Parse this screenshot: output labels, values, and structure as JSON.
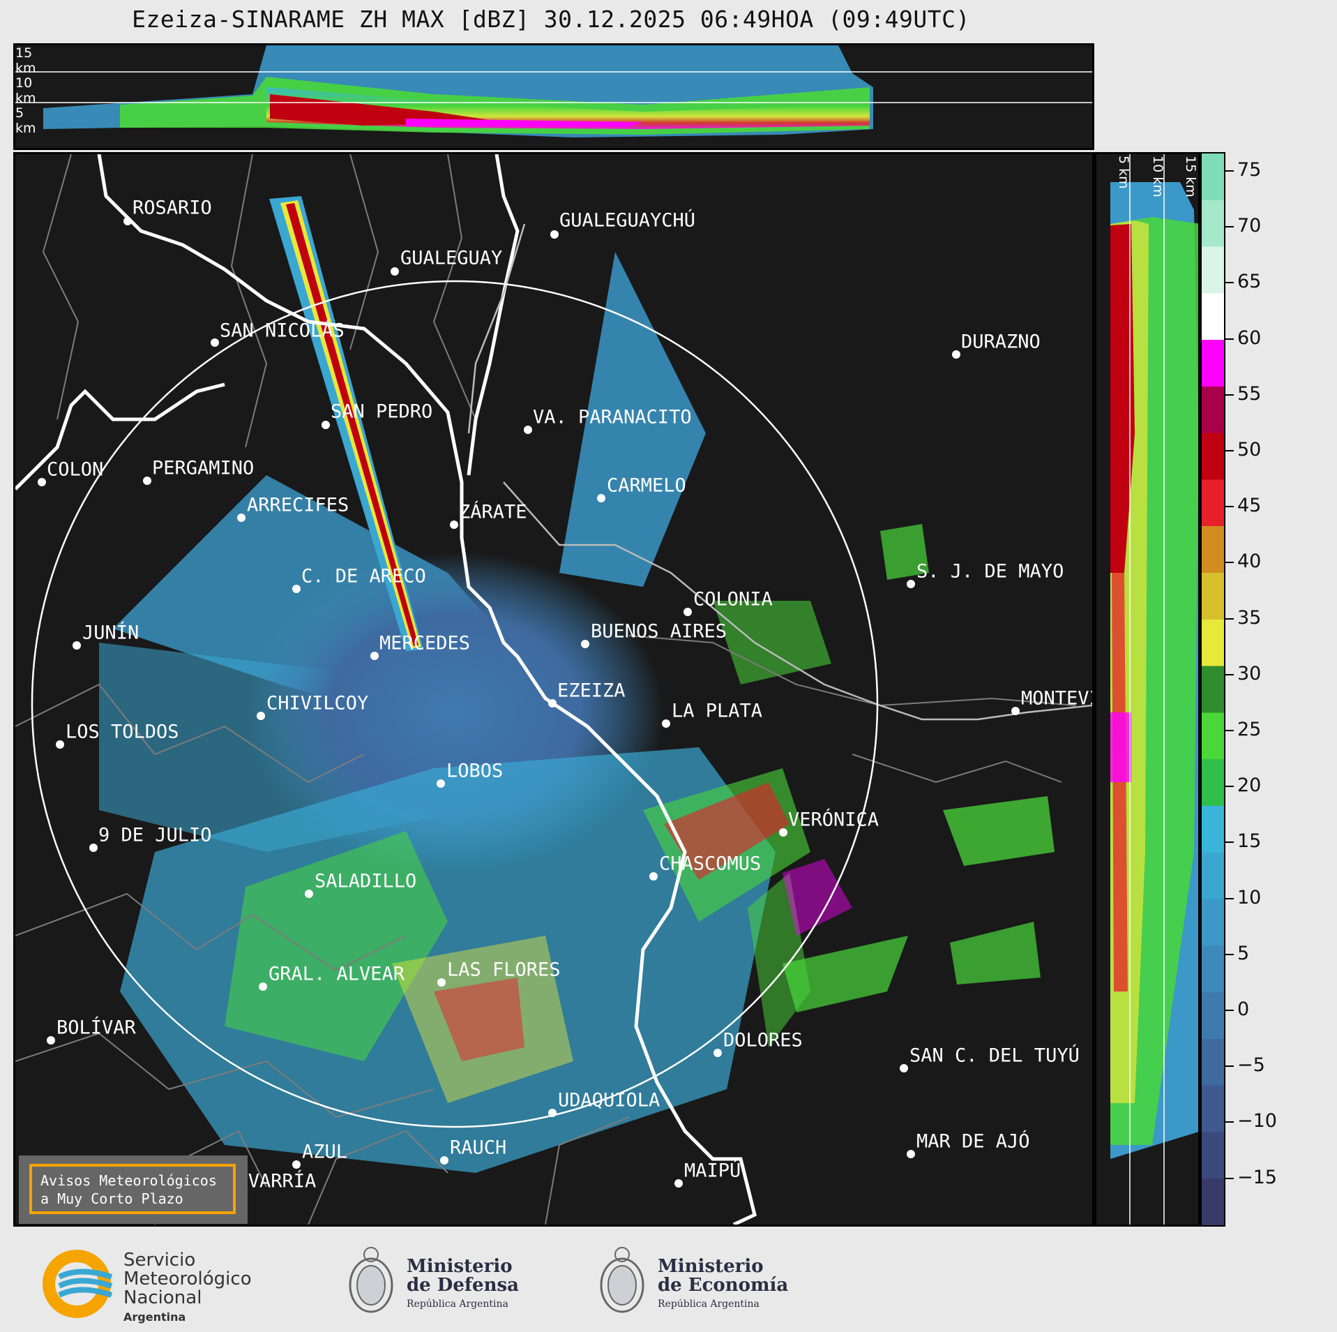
{
  "title": "Ezeiza-SINARAME ZH MAX [dBZ] 30.12.2025 06:49HOA (09:49UTC)",
  "top_panel": {
    "height_labels": [
      "15 km",
      "10 km",
      "5 km"
    ]
  },
  "side_panel": {
    "height_labels": [
      "5 km",
      "10 km",
      "15 km"
    ]
  },
  "colorbar": {
    "unit": "dBZ",
    "ticks": [
      "75",
      "70",
      "65",
      "60",
      "55",
      "50",
      "45",
      "40",
      "35",
      "30",
      "25",
      "20",
      "15",
      "10",
      "5",
      "0",
      "−5",
      "−10",
      "−15"
    ],
    "colors": [
      "#383b67",
      "#3b4a7c",
      "#3e5a8e",
      "#3f6a9e",
      "#3f7aae",
      "#3e89bc",
      "#3b98c8",
      "#3aa7d2",
      "#39b5da",
      "#2fc04a",
      "#49d73a",
      "#2f8d2d",
      "#e8e83a",
      "#d7c02d",
      "#d18d20",
      "#e8202a",
      "#c00010",
      "#a8004a",
      "#ff00ff",
      "#ffffff",
      "#d8f5e8",
      "#a6e8cc",
      "#7fdcb8"
    ]
  },
  "map": {
    "cities": [
      {
        "name": "ROSARIO"
      },
      {
        "name": "GUALEGUAYCHÚ"
      },
      {
        "name": "GUALEGUAY"
      },
      {
        "name": "SAN NICOLÁS"
      },
      {
        "name": "DURAZNO"
      },
      {
        "name": "SAN PEDRO"
      },
      {
        "name": "VA. PARANACITO"
      },
      {
        "name": "COLON"
      },
      {
        "name": "PERGAMINO"
      },
      {
        "name": "CARMELO"
      },
      {
        "name": "ARRECIFES"
      },
      {
        "name": "ZÁRATE"
      },
      {
        "name": "S. J. DE MAYO"
      },
      {
        "name": "C. DE ARECO"
      },
      {
        "name": "COLONIA"
      },
      {
        "name": "JUNÍN"
      },
      {
        "name": "BUENOS AIRES"
      },
      {
        "name": "MERCEDES"
      },
      {
        "name": "EZEIZA"
      },
      {
        "name": "MONTEVIDEO"
      },
      {
        "name": "CHIVILCOY"
      },
      {
        "name": "LA PLATA"
      },
      {
        "name": "LOS TOLDOS"
      },
      {
        "name": "LOBOS"
      },
      {
        "name": "VERÓNICA"
      },
      {
        "name": "9 DE JULIO"
      },
      {
        "name": "CHASCOMUS"
      },
      {
        "name": "SALADILLO"
      },
      {
        "name": "GRAL. ALVEAR"
      },
      {
        "name": "LAS FLORES"
      },
      {
        "name": "BOLÍVAR"
      },
      {
        "name": "DOLORES"
      },
      {
        "name": "SAN C. DEL TUYÚ"
      },
      {
        "name": "UDAQUIOLA"
      },
      {
        "name": "AZUL"
      },
      {
        "name": "RAUCH"
      },
      {
        "name": "MAR DE AJÓ"
      },
      {
        "name": "OLAVARRÍA"
      },
      {
        "name": "MAIPÚ"
      }
    ],
    "notice": [
      "Avisos Meteorológicos",
      "a Muy Corto Plazo"
    ]
  },
  "logos": {
    "smn": [
      "Servicio",
      "Meteorológico",
      "Nacional",
      "Argentina"
    ],
    "defensa": [
      "Ministerio",
      "de Defensa",
      "República Argentina"
    ],
    "economia": [
      "Ministerio",
      "de Economía",
      "República Argentina"
    ]
  }
}
